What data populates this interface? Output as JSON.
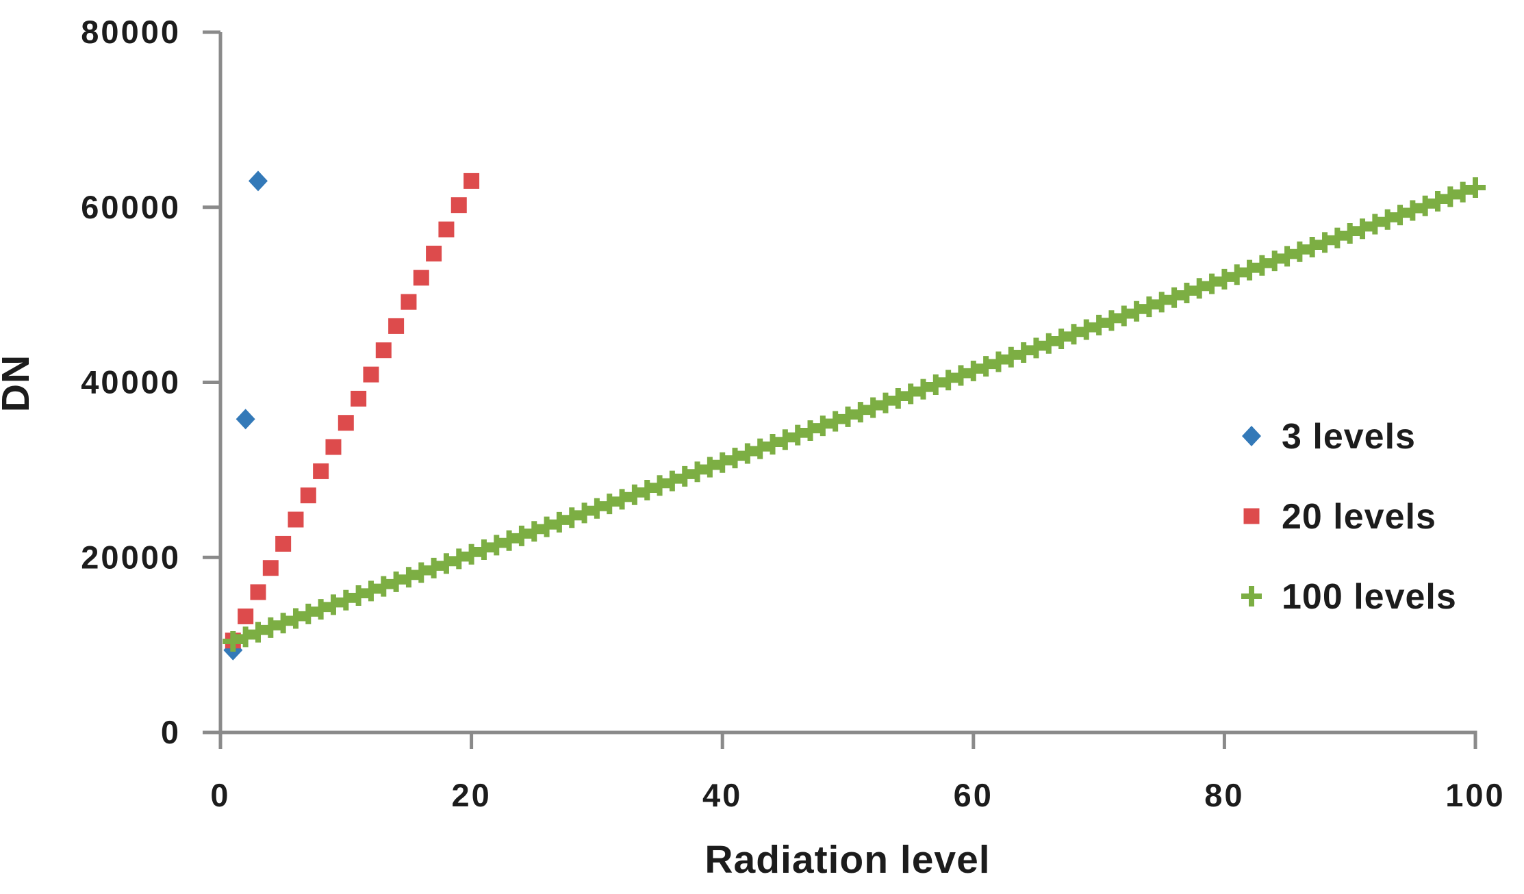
{
  "page": {
    "background": "#ffffff"
  },
  "chart_data": {
    "type": "scatter",
    "title": "",
    "xlabel": "Radiation level",
    "ylabel": "DN",
    "xlim": [
      0,
      100
    ],
    "ylim": [
      0,
      80000
    ],
    "x_ticks": [
      0,
      20,
      40,
      60,
      80,
      100
    ],
    "y_ticks": [
      0,
      20000,
      40000,
      60000,
      80000
    ],
    "grid": false,
    "legend_position": "middle-right",
    "axis_color": "#8a8a8a",
    "text_color": "#1c1c1c",
    "series": [
      {
        "name": "3 levels",
        "marker": "diamond",
        "color": "#3379b8",
        "x": [
          1,
          2,
          3
        ],
        "y": [
          9400,
          35800,
          63000
        ]
      },
      {
        "name": "20 levels",
        "marker": "square",
        "color": "#dd4b4c",
        "x": [
          1,
          2,
          3,
          4,
          5,
          6,
          7,
          8,
          9,
          10,
          11,
          12,
          13,
          14,
          15,
          16,
          17,
          18,
          19,
          20
        ],
        "y": [
          10500,
          13260,
          16030,
          18790,
          21550,
          24320,
          27080,
          29840,
          32610,
          35370,
          38130,
          40890,
          43660,
          46420,
          49180,
          51950,
          54710,
          57470,
          60240,
          63000
        ]
      },
      {
        "name": "100 levels",
        "marker": "plus",
        "color": "#7cae43",
        "x": [
          1,
          2,
          3,
          4,
          5,
          6,
          7,
          8,
          9,
          10,
          11,
          12,
          13,
          14,
          15,
          16,
          17,
          18,
          19,
          20,
          21,
          22,
          23,
          24,
          25,
          26,
          27,
          28,
          29,
          30,
          31,
          32,
          33,
          34,
          35,
          36,
          37,
          38,
          39,
          40,
          41,
          42,
          43,
          44,
          45,
          46,
          47,
          48,
          49,
          50,
          51,
          52,
          53,
          54,
          55,
          56,
          57,
          58,
          59,
          60,
          61,
          62,
          63,
          64,
          65,
          66,
          67,
          68,
          69,
          70,
          71,
          72,
          73,
          74,
          75,
          76,
          77,
          78,
          79,
          80,
          81,
          82,
          83,
          84,
          85,
          86,
          87,
          88,
          89,
          90,
          91,
          92,
          93,
          94,
          95,
          96,
          97,
          98,
          99,
          100
        ],
        "y": [
          10400,
          10920,
          11450,
          11970,
          12490,
          13020,
          13540,
          14070,
          14590,
          15110,
          15640,
          16160,
          16690,
          17210,
          17730,
          18260,
          18780,
          19300,
          19830,
          20350,
          20880,
          21400,
          21920,
          22450,
          22970,
          23490,
          24020,
          24540,
          25070,
          25590,
          26110,
          26640,
          27160,
          27680,
          28210,
          28730,
          29260,
          29780,
          30300,
          30830,
          31350,
          31870,
          32400,
          32920,
          33450,
          33970,
          34490,
          35020,
          35540,
          36060,
          36590,
          37110,
          37640,
          38160,
          38680,
          39210,
          39730,
          40250,
          40780,
          41300,
          41830,
          42350,
          42870,
          43400,
          43920,
          44440,
          44970,
          45490,
          46020,
          46540,
          47060,
          47590,
          48110,
          48630,
          49160,
          49680,
          50210,
          50730,
          51250,
          51780,
          52300,
          52820,
          53350,
          53870,
          54400,
          54920,
          55440,
          55970,
          56490,
          57010,
          57540,
          58060,
          58590,
          59110,
          59630,
          60160,
          60680,
          61200,
          61730,
          62250
        ]
      }
    ]
  }
}
